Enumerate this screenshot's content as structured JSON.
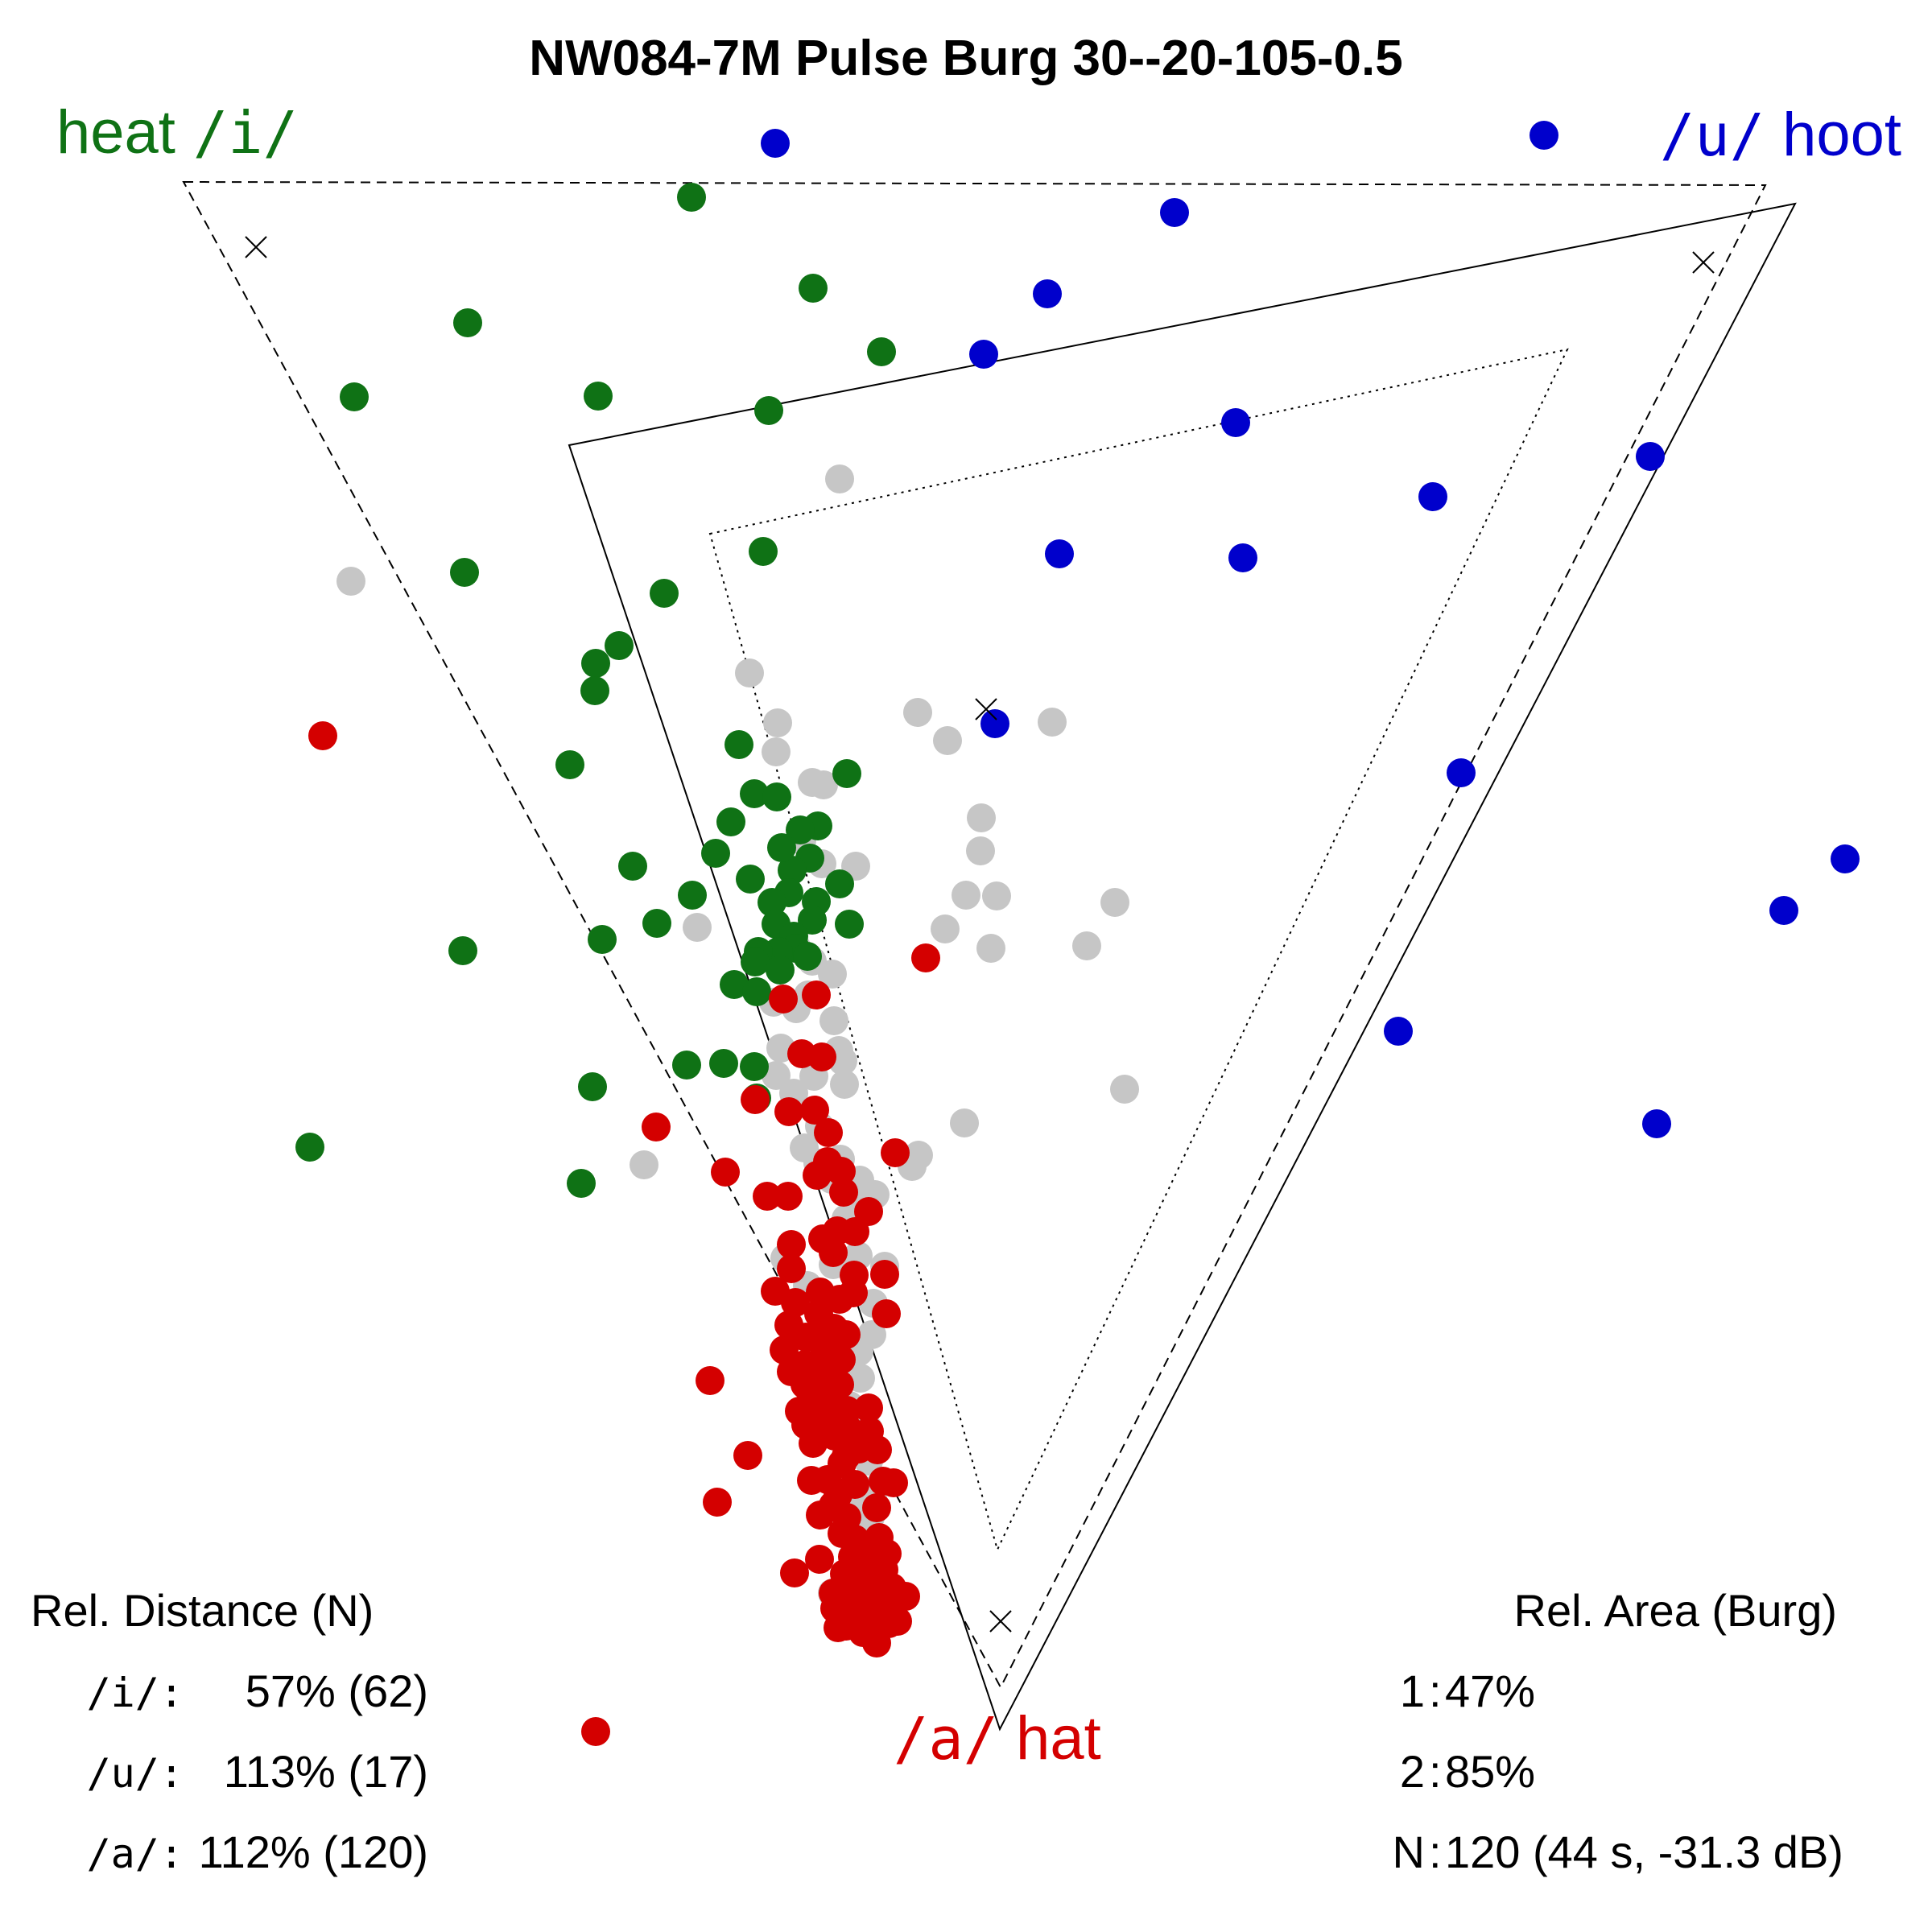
{
  "chart_data": {
    "type": "scatter",
    "title": "NW084-7M Pulse Burg 30--20-105-0.5",
    "vowel_labels": {
      "i": {
        "word": "heat",
        "symbol": "/i/",
        "color": "#0f7215"
      },
      "u": {
        "word": "hoot",
        "symbol": "/u/",
        "color": "#0000cc"
      },
      "a": {
        "word": "hat",
        "symbol": "/a/",
        "color": "#d40000"
      }
    },
    "colors": {
      "i": "#0f7215",
      "u": "#0000cc",
      "a": "#d40000",
      "other": "#c6c6c6",
      "lines": "#000000"
    },
    "series": [
      {
        "name": "/i/",
        "color": "#0f7215",
        "points": [
          [
            859,
            245
          ],
          [
            1010,
            358
          ],
          [
            1095,
            437
          ],
          [
            955,
            510
          ],
          [
            581,
            401
          ],
          [
            743,
            492
          ],
          [
            440,
            493
          ],
          [
            948,
            685
          ],
          [
            577,
            711
          ],
          [
            825,
            737
          ],
          [
            769,
            802
          ],
          [
            740,
            824
          ],
          [
            739,
            858
          ],
          [
            918,
            925
          ],
          [
            708,
            950
          ],
          [
            1052,
            961
          ],
          [
            937,
            986
          ],
          [
            965,
            990
          ],
          [
            1016,
            1026
          ],
          [
            908,
            1021
          ],
          [
            889,
            1060
          ],
          [
            994,
            1031
          ],
          [
            1006,
            1066
          ],
          [
            984,
            1081
          ],
          [
            971,
            1053
          ],
          [
            786,
            1076
          ],
          [
            932,
            1092
          ],
          [
            860,
            1112
          ],
          [
            1043,
            1098
          ],
          [
            980,
            1109
          ],
          [
            1014,
            1120
          ],
          [
            959,
            1121
          ],
          [
            1055,
            1148
          ],
          [
            1009,
            1143
          ],
          [
            964,
            1148
          ],
          [
            986,
            1163
          ],
          [
            988,
            1178
          ],
          [
            748,
            1167
          ],
          [
            816,
            1147
          ],
          [
            575,
            1181
          ],
          [
            967,
            1182
          ],
          [
            942,
            1182
          ],
          [
            1003,
            1188
          ],
          [
            938,
            1195
          ],
          [
            969,
            1205
          ],
          [
            912,
            1223
          ],
          [
            940,
            1232
          ],
          [
            853,
            1323
          ],
          [
            899,
            1321
          ],
          [
            937,
            1325
          ],
          [
            736,
            1350
          ],
          [
            940,
            1364
          ],
          [
            385,
            1425
          ],
          [
            722,
            1470
          ]
        ]
      },
      {
        "name": "/u/",
        "color": "#0000cc",
        "points": [
          [
            963,
            178
          ],
          [
            1918,
            168
          ],
          [
            1459,
            264
          ],
          [
            1301,
            365
          ],
          [
            1222,
            440
          ],
          [
            1535,
            525
          ],
          [
            2050,
            567
          ],
          [
            1780,
            617
          ],
          [
            1316,
            688
          ],
          [
            1544,
            693
          ],
          [
            1236,
            899
          ],
          [
            1815,
            960
          ],
          [
            2292,
            1067
          ],
          [
            2216,
            1131
          ],
          [
            1737,
            1281
          ],
          [
            2058,
            1396
          ]
        ]
      },
      {
        "name": "/a/",
        "color": "#d40000",
        "points": [
          [
            401,
            914
          ],
          [
            1150,
            1190
          ],
          [
            973,
            1241
          ],
          [
            1014,
            1236
          ],
          [
            996,
            1309
          ],
          [
            1021,
            1313
          ],
          [
            938,
            1366
          ],
          [
            815,
            1400
          ],
          [
            980,
            1381
          ],
          [
            1012,
            1379
          ],
          [
            1029,
            1407
          ],
          [
            1112,
            1432
          ],
          [
            901,
            1456
          ],
          [
            1028,
            1443
          ],
          [
            1015,
            1460
          ],
          [
            1045,
            1455
          ],
          [
            953,
            1486
          ],
          [
            979,
            1486
          ],
          [
            1048,
            1481
          ],
          [
            1079,
            1505
          ],
          [
            1040,
            1529
          ],
          [
            1022,
            1539
          ],
          [
            1062,
            1530
          ],
          [
            983,
            1546
          ],
          [
            1035,
            1556
          ],
          [
            983,
            1576
          ],
          [
            1061,
            1584
          ],
          [
            1099,
            1583
          ],
          [
            963,
            1604
          ],
          [
            988,
            1618
          ],
          [
            1019,
            1605
          ],
          [
            1043,
            1614
          ],
          [
            1060,
            1606
          ],
          [
            1017,
            1632
          ],
          [
            1036,
            1650
          ],
          [
            1101,
            1632
          ],
          [
            980,
            1646
          ],
          [
            1001,
            1661
          ],
          [
            1020,
            1665
          ],
          [
            1037,
            1668
          ],
          [
            974,
            1677
          ],
          [
            1051,
            1658
          ],
          [
            1000,
            1695
          ],
          [
            1024,
            1681
          ],
          [
            1045,
            1689
          ],
          [
            983,
            1704
          ],
          [
            1027,
            1706
          ],
          [
            1000,
            1720
          ],
          [
            1043,
            1720
          ],
          [
            882,
            1715
          ],
          [
            1008,
            1735
          ],
          [
            1024,
            1738
          ],
          [
            1032,
            1752
          ],
          [
            993,
            1753
          ],
          [
            1052,
            1752
          ],
          [
            1079,
            1749
          ],
          [
            1001,
            1770
          ],
          [
            1017,
            1762
          ],
          [
            1054,
            1776
          ],
          [
            1037,
            1784
          ],
          [
            1080,
            1778
          ],
          [
            1010,
            1793
          ],
          [
            1051,
            1809
          ],
          [
            1067,
            1800
          ],
          [
            1090,
            1801
          ],
          [
            1046,
            1818
          ],
          [
            1028,
            1838
          ],
          [
            1062,
            1844
          ],
          [
            1008,
            1839
          ],
          [
            1041,
            1857
          ],
          [
            929,
            1808
          ],
          [
            1035,
            1870
          ],
          [
            1052,
            1885
          ],
          [
            1097,
            1840
          ],
          [
            1019,
            1882
          ],
          [
            1046,
            1905
          ],
          [
            1062,
            1912
          ],
          [
            1089,
            1873
          ],
          [
            1110,
            1842
          ],
          [
            1059,
            1934
          ],
          [
            1092,
            1910
          ],
          [
            891,
            1866
          ],
          [
            1091,
            1930
          ],
          [
            1018,
            1937
          ],
          [
            1049,
            1955
          ],
          [
            1072,
            1949
          ],
          [
            1063,
            1968
          ],
          [
            1102,
            1930
          ],
          [
            1098,
            1950
          ],
          [
            1065,
            1974
          ],
          [
            1035,
            1979
          ],
          [
            1073,
            1994
          ],
          [
            1110,
            1987
          ],
          [
            1080,
            2006
          ],
          [
            1108,
            1972
          ],
          [
            1087,
            2027
          ],
          [
            1125,
            1983
          ],
          [
            1041,
            1992
          ],
          [
            1051,
            2008
          ],
          [
            1085,
            1988
          ],
          [
            1071,
            2001
          ],
          [
            1115,
            2014
          ],
          [
            1089,
            2041
          ],
          [
            1104,
            2017
          ],
          [
            1051,
            2020
          ],
          [
            1074,
            2018
          ],
          [
            1100,
            2001
          ],
          [
            1060,
            1985
          ],
          [
            987,
            1954
          ],
          [
            1088,
            1966
          ],
          [
            1037,
            1998
          ],
          [
            1072,
            2028
          ],
          [
            1087,
            2010
          ],
          [
            1041,
            2022
          ],
          [
            740,
            2151
          ]
        ]
      },
      {
        "name": "other",
        "color": "#c6c6c6",
        "points": [
          [
            1043,
            595
          ],
          [
            436,
            722
          ],
          [
            931,
            836
          ],
          [
            966,
            898
          ],
          [
            1140,
            885
          ],
          [
            1177,
            920
          ],
          [
            1307,
            897
          ],
          [
            964,
            934
          ],
          [
            1009,
            972
          ],
          [
            1023,
            975
          ],
          [
            1219,
            1016
          ],
          [
            1218,
            1057
          ],
          [
            996,
            1044
          ],
          [
            1021,
            1073
          ],
          [
            1063,
            1076
          ],
          [
            1200,
            1112
          ],
          [
            1238,
            1113
          ],
          [
            1385,
            1121
          ],
          [
            1174,
            1154
          ],
          [
            866,
            1152
          ],
          [
            1350,
            1175
          ],
          [
            1231,
            1178
          ],
          [
            990,
            1178
          ],
          [
            1009,
            1194
          ],
          [
            1034,
            1210
          ],
          [
            1004,
            1236
          ],
          [
            961,
            1245
          ],
          [
            989,
            1253
          ],
          [
            1036,
            1268
          ],
          [
            1042,
            1305
          ],
          [
            970,
            1302
          ],
          [
            1011,
            1337
          ],
          [
            1047,
            1318
          ],
          [
            964,
            1336
          ],
          [
            986,
            1358
          ],
          [
            1049,
            1347
          ],
          [
            1397,
            1353
          ],
          [
            1198,
            1395
          ],
          [
            1018,
            1399
          ],
          [
            999,
            1426
          ],
          [
            1016,
            1445
          ],
          [
            1044,
            1440
          ],
          [
            1141,
            1435
          ],
          [
            1133,
            1449
          ],
          [
            800,
            1447
          ],
          [
            1033,
            1465
          ],
          [
            1056,
            1474
          ],
          [
            1068,
            1466
          ],
          [
            1087,
            1484
          ],
          [
            1071,
            1504
          ],
          [
            1051,
            1514
          ],
          [
            1035,
            1571
          ],
          [
            1066,
            1560
          ],
          [
            1099,
            1573
          ],
          [
            975,
            1563
          ],
          [
            1003,
            1597
          ],
          [
            1085,
            1619
          ],
          [
            1083,
            1658
          ],
          [
            1067,
            1679
          ],
          [
            1038,
            1689
          ],
          [
            1069,
            1712
          ],
          [
            1055,
            1746
          ],
          [
            1078,
            1774
          ],
          [
            1079,
            1815
          ],
          [
            1086,
            1851
          ],
          [
            1068,
            1872
          ],
          [
            1081,
            1885
          ],
          [
            1034,
            1979
          ],
          [
            1040,
            1985
          ]
        ]
      }
    ],
    "reference_marks": [
      [
        318,
        307
      ],
      [
        2116,
        326
      ],
      [
        1225,
        881
      ],
      [
        1243,
        2014
      ]
    ],
    "triangles": {
      "solid": [
        [
          707,
          553
        ],
        [
          2230,
          253
        ],
        [
          1242,
          2148
        ]
      ],
      "dashed": [
        [
          228,
          226
        ],
        [
          2193,
          230
        ],
        [
          1243,
          2096
        ]
      ],
      "dotted": [
        [
          882,
          663
        ],
        [
          1947,
          434
        ],
        [
          1239,
          1925
        ]
      ]
    },
    "rel_distance": {
      "header": "Rel. Distance (N)",
      "rows": [
        {
          "symbol": "/i/:",
          "value": "57% (62)"
        },
        {
          "symbol": "/u/:",
          "value": "113% (17)"
        },
        {
          "symbol": "/a/:",
          "value": "112% (120)"
        }
      ]
    },
    "rel_area": {
      "header": "Rel. Area (Burg)",
      "rows": [
        {
          "key": "1",
          "value": "47%"
        },
        {
          "key": "2",
          "value": "85%"
        },
        {
          "key": "N",
          "value": "120 (44 s, -31.3 dB)"
        }
      ]
    }
  }
}
